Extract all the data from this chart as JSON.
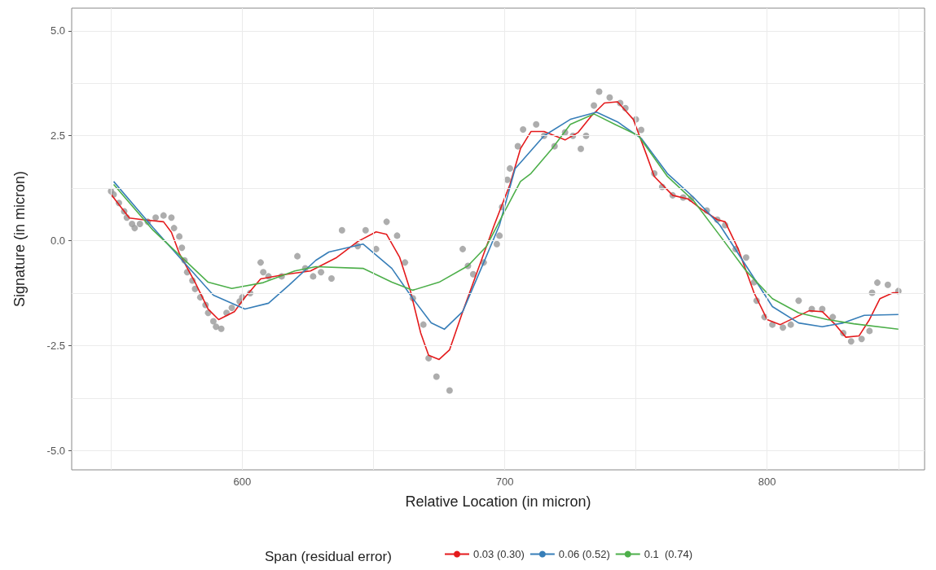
{
  "chart_data": {
    "type": "line",
    "xlabel": "Relative Location (in micron)",
    "ylabel": "Signature (in micron)",
    "legend_title": "Span (residual error)",
    "legend": "bottom",
    "grid": true,
    "xlim": [
      535,
      860
    ],
    "xticks": [
      {
        "value": 550,
        "label": null
      },
      600,
      {
        "value": 650,
        "label": null
      },
      700,
      {
        "value": 750,
        "label": null
      },
      800,
      {
        "value": 850,
        "label": null
      }
    ],
    "ylim": [
      -5.46,
      5.54
    ],
    "yticks": [
      {
        "value": -5,
        "label": "-5.0"
      },
      {
        "value": -3.75,
        "label": null
      },
      {
        "value": -2.5,
        "label": "-2.5"
      },
      {
        "value": -1.25,
        "label": null
      },
      {
        "value": 0,
        "label": "0.0"
      },
      {
        "value": 1.25,
        "label": null
      },
      {
        "value": 2.5,
        "label": "2.5"
      },
      {
        "value": 3.75,
        "label": null
      },
      {
        "value": 5,
        "label": "5.0"
      }
    ],
    "series": [
      {
        "type": "scatter",
        "marker": "circle",
        "color": "#999999",
        "x": [
          550,
          551,
          553,
          555,
          556,
          558,
          559,
          561,
          564,
          567,
          570,
          573,
          574,
          576,
          577,
          578,
          579,
          581,
          582,
          584,
          586,
          587,
          589,
          590,
          592,
          594,
          596,
          599,
          600,
          603,
          607,
          608,
          610,
          615,
          621,
          624,
          627,
          630,
          634,
          638,
          644,
          647,
          651,
          655,
          659,
          662,
          665,
          669,
          671,
          674,
          679,
          684,
          686,
          688,
          692,
          697,
          698,
          699,
          701,
          702,
          705,
          707,
          712,
          715,
          719,
          723,
          726,
          729,
          731,
          734,
          736,
          740,
          744,
          746,
          750,
          752,
          757,
          760,
          764,
          768,
          771,
          777,
          781,
          784,
          788,
          792,
          795,
          796,
          799,
          802,
          806,
          809,
          812,
          817,
          821,
          825,
          829,
          832,
          836,
          839,
          840,
          842,
          846,
          850
        ],
        "values": [
          1.18,
          1.1,
          0.9,
          0.7,
          0.55,
          0.4,
          0.3,
          0.4,
          0.45,
          0.55,
          0.6,
          0.55,
          0.3,
          0.1,
          -0.17,
          -0.47,
          -0.75,
          -0.95,
          -1.15,
          -1.35,
          -1.53,
          -1.72,
          -1.92,
          -2.05,
          -2.1,
          -1.72,
          -1.6,
          -1.45,
          -1.35,
          -1.25,
          -0.52,
          -0.75,
          -0.85,
          -0.85,
          -0.37,
          -0.66,
          -0.85,
          -0.75,
          -0.9,
          0.25,
          -0.13,
          0.25,
          -0.2,
          0.45,
          0.12,
          -0.52,
          -1.37,
          -2.0,
          -2.8,
          -3.24,
          -3.57,
          -0.2,
          -0.6,
          -0.8,
          -0.52,
          -0.08,
          0.12,
          0.8,
          1.45,
          1.72,
          2.25,
          2.65,
          2.77,
          2.5,
          2.25,
          2.58,
          2.5,
          2.19,
          2.5,
          3.22,
          3.55,
          3.41,
          3.28,
          3.16,
          2.89,
          2.64,
          1.6,
          1.28,
          1.08,
          1.03,
          1.0,
          0.72,
          0.5,
          0.37,
          -0.2,
          -0.4,
          -0.99,
          -1.43,
          -1.82,
          -2.0,
          -2.07,
          -2.0,
          -1.43,
          -1.63,
          -1.63,
          -1.82,
          -2.2,
          -2.4,
          -2.34,
          -2.15,
          -1.24,
          -1.0,
          -1.05,
          -1.2
        ]
      },
      {
        "name": "0.03 (0.30)",
        "marker": "none",
        "color": "#e41a1c",
        "x": [
          550,
          557,
          562,
          570,
          573,
          576,
          582,
          587,
          591,
          597,
          601,
          607,
          616,
          626,
          636,
          644,
          651,
          655,
          660,
          664,
          668,
          671,
          675,
          679,
          684,
          690,
          696,
          702,
          706,
          710,
          715,
          723,
          728,
          733,
          738,
          743,
          749,
          754,
          757,
          764,
          770,
          775,
          781,
          784,
          789,
          795,
          800,
          805,
          811,
          816,
          821,
          826,
          830,
          835,
          839,
          843,
          848,
          850
        ],
        "values": [
          1.1,
          0.54,
          0.5,
          0.45,
          0.2,
          -0.3,
          -0.99,
          -1.63,
          -1.88,
          -1.69,
          -1.35,
          -0.91,
          -0.81,
          -0.72,
          -0.4,
          -0.02,
          0.21,
          0.15,
          -0.4,
          -1.18,
          -2.2,
          -2.73,
          -2.83,
          -2.6,
          -1.69,
          -0.66,
          0.37,
          1.34,
          2.19,
          2.6,
          2.6,
          2.4,
          2.58,
          2.97,
          3.28,
          3.31,
          2.89,
          2.05,
          1.53,
          1.08,
          0.99,
          0.75,
          0.5,
          0.45,
          -0.2,
          -1.24,
          -1.88,
          -2.0,
          -1.82,
          -1.67,
          -1.69,
          -2.0,
          -2.3,
          -2.27,
          -1.88,
          -1.38,
          -1.24,
          -1.24
        ]
      },
      {
        "name": "0.06 (0.52)",
        "marker": "none",
        "color": "#377eb8",
        "x": [
          551,
          566,
          579,
          589,
          601,
          610,
          618,
          628,
          633,
          646,
          657,
          665,
          672,
          677,
          684,
          692,
          698,
          704,
          706,
          715,
          725,
          735,
          743,
          752,
          762,
          772,
          782,
          792,
          802,
          812,
          821,
          829,
          837,
          850
        ],
        "values": [
          1.41,
          0.31,
          -0.6,
          -1.3,
          -1.63,
          -1.49,
          -1.05,
          -0.47,
          -0.27,
          -0.08,
          -0.66,
          -1.38,
          -1.96,
          -2.11,
          -1.69,
          -0.52,
          0.37,
          1.72,
          1.86,
          2.5,
          2.89,
          3.06,
          2.83,
          2.44,
          1.6,
          1.03,
          0.37,
          -0.6,
          -1.57,
          -1.96,
          -2.05,
          -1.96,
          -1.78,
          -1.76
        ]
      },
      {
        "name": "0.1  (0.74)",
        "marker": "none",
        "color": "#4daf4a",
        "x": [
          551,
          566,
          577,
          587,
          596,
          608,
          620,
          628,
          646,
          657,
          665,
          675,
          686,
          693,
          700,
          706,
          710,
          718,
          725,
          734,
          742,
          751,
          762,
          772,
          782,
          792,
          802,
          812,
          823,
          833,
          850
        ],
        "values": [
          1.34,
          0.25,
          -0.4,
          -0.99,
          -1.14,
          -1.0,
          -0.72,
          -0.62,
          -0.66,
          -0.99,
          -1.18,
          -0.99,
          -0.6,
          -0.14,
          0.7,
          1.41,
          1.6,
          2.19,
          2.77,
          3.02,
          2.77,
          2.5,
          1.53,
          0.95,
          0.12,
          -0.72,
          -1.38,
          -1.72,
          -1.88,
          -1.98,
          -2.11
        ]
      }
    ]
  }
}
